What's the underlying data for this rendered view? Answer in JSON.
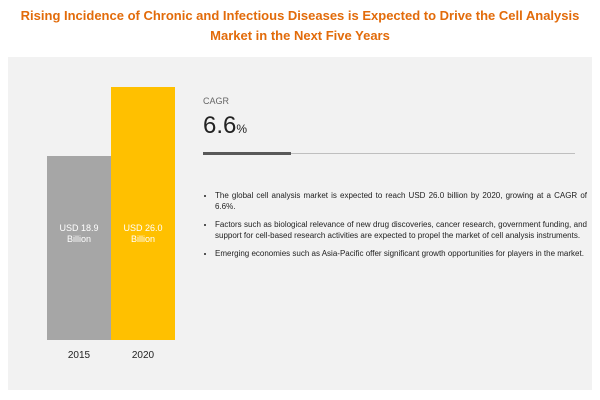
{
  "chart_data": {
    "type": "bar",
    "title": "Rising Incidence of Chronic and Infectious Diseases is Expected to Drive the Cell Analysis Market in the Next Five Years",
    "categories": [
      "2015",
      "2020"
    ],
    "values": [
      18.9,
      26.0
    ],
    "value_labels": [
      "USD 18.9 Billion",
      "USD 26.0 Billion"
    ],
    "colors": [
      "#a6a6a6",
      "#ffc000"
    ]
  },
  "cagr": {
    "label": "CAGR",
    "value": 6.6,
    "unit": "%"
  },
  "bullets": [
    "The global cell analysis market is expected to reach USD 26.0 billion by 2020, growing at a CAGR of 6.6%.",
    "Factors such as biological relevance of new drug discoveries, cancer research, government funding, and support for cell-based research activities are expected to propel the market of cell analysis instruments.",
    "Emerging economies such as Asia-Pacific offer significant growth opportunities for players in the market."
  ]
}
